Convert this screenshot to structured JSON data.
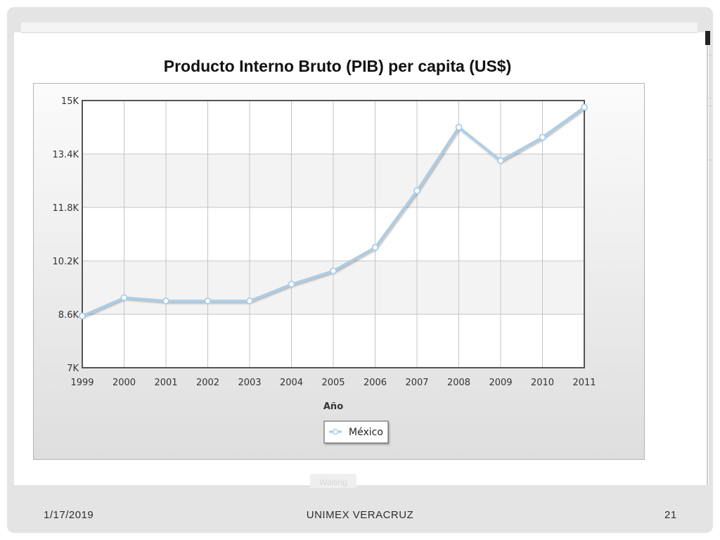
{
  "footer": {
    "date": "1/17/2019",
    "organization": "UNIMEX VERACRUZ",
    "page_number": "21"
  },
  "status": {
    "waiting_label": "Waiting"
  },
  "colors": {
    "series_line": "#aacde8",
    "series_point_fill": "#ffffff",
    "grid": "#c4c4c4",
    "plot_border": "#555555",
    "band_fill": "#f3f3f3"
  },
  "chart_data": {
    "type": "line",
    "title": "Producto Interno Bruto (PIB) per capita (US$)",
    "xlabel": "Año",
    "ylabel": "",
    "categories": [
      "1999",
      "2000",
      "2001",
      "2002",
      "2003",
      "2004",
      "2005",
      "2006",
      "2007",
      "2008",
      "2009",
      "2010",
      "2011"
    ],
    "y_ticks": [
      "7K",
      "8.6K",
      "10.2K",
      "11.8K",
      "13.4K",
      "15K"
    ],
    "y_tick_values": [
      7000,
      8600,
      10200,
      11800,
      13400,
      15000
    ],
    "ylim": [
      7000,
      15000
    ],
    "grid": true,
    "legend_position": "bottom-center",
    "series": [
      {
        "name": "México",
        "values": [
          8550,
          9100,
          9000,
          9000,
          9000,
          9500,
          9900,
          10600,
          12300,
          14200,
          13200,
          13900,
          14800
        ]
      }
    ]
  }
}
